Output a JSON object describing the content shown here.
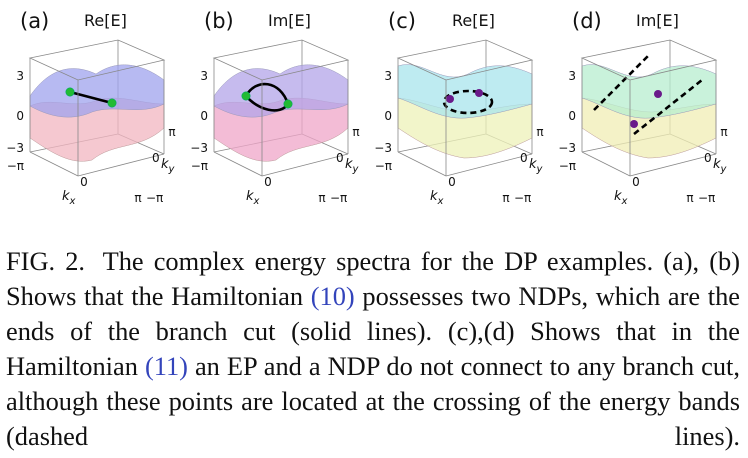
{
  "panels": [
    {
      "label": "(a)",
      "title": "Re[E]",
      "top_color": "#9fa3ee",
      "bottom_color": "#f2b6c0",
      "style": "solid",
      "markers": "green",
      "cut": "line"
    },
    {
      "label": "(b)",
      "title": "Im[E]",
      "top_color": "#b3a4e8",
      "bottom_color": "#efa6c8",
      "style": "solid",
      "markers": "green",
      "cut": "loop"
    },
    {
      "label": "(c)",
      "title": "Re[E]",
      "top_color": "#a8e4ec",
      "bottom_color": "#eef2b8",
      "style": "dashed",
      "markers": "purple",
      "cut": "ellipse"
    },
    {
      "label": "(d)",
      "title": "Im[E]",
      "top_color": "#b7eecf",
      "bottom_color": "#f0eeb4",
      "style": "dashed",
      "markers": "purple",
      "cut": "parallel"
    }
  ],
  "axes": {
    "z_ticks": [
      "3",
      "0",
      "−3"
    ],
    "kx_ticks": [
      "−π",
      "0",
      "π"
    ],
    "ky_ticks": [
      "π",
      "0",
      "−π"
    ],
    "kx_label": "k",
    "kx_sub": "x",
    "ky_label": "k",
    "ky_sub": "y"
  },
  "caption": {
    "fig_label": "FIG. 2.",
    "part1": "The complex energy spectra for the DP examples. (a), (b) Shows that the Hamiltonian ",
    "ref1": "(10)",
    "part2": " possesses two NDPs, which are the ends of the branch cut (solid lines). (c),(d) Shows that in the Hamiltonian ",
    "ref2": "(11)",
    "part3": " an EP and a NDP do not connect to any branch cut, although these points are located at the crossing of the energy bands (dashed lines)."
  },
  "colors": {
    "green_marker": "#22bb33",
    "purple_marker": "#6a1a8a",
    "reference_link": "#3344bb"
  }
}
